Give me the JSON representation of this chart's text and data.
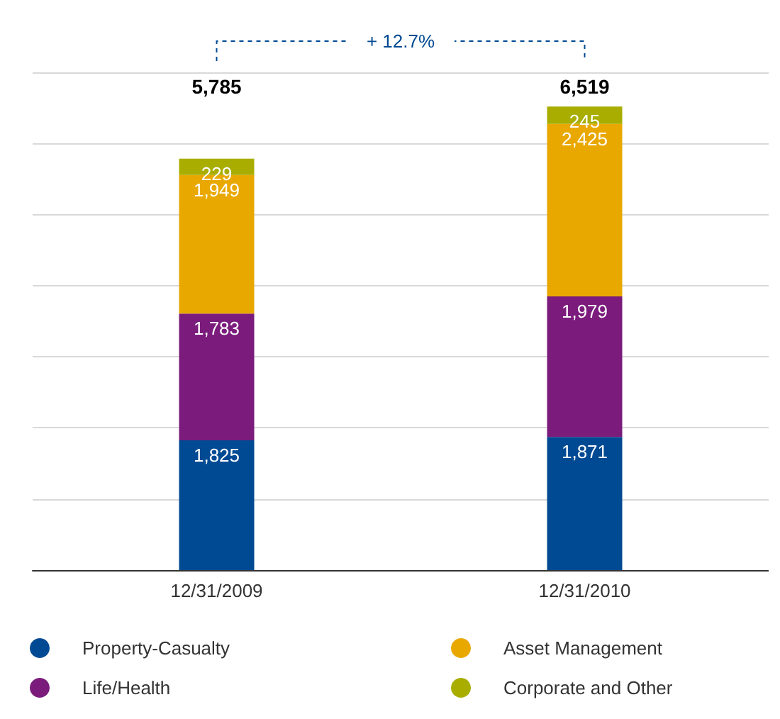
{
  "chart_data": {
    "type": "bar",
    "stacked": true,
    "categories": [
      "12/31/2009",
      "12/31/2010"
    ],
    "series": [
      {
        "name": "Property-Casualty",
        "color": "#004a93",
        "values": [
          1825,
          1871
        ],
        "value_labels": [
          "1,825",
          "1,871"
        ]
      },
      {
        "name": "Life/Health",
        "color": "#7b1c7d",
        "values": [
          1783,
          1979
        ],
        "value_labels": [
          "1,783",
          "1,979"
        ]
      },
      {
        "name": "Asset Management",
        "color": "#e9a800",
        "values": [
          1949,
          2425
        ],
        "value_labels": [
          "1,949",
          "2,425"
        ]
      },
      {
        "name": "Corporate and Other",
        "color": "#a8ad00",
        "values": [
          229,
          245
        ],
        "value_labels": [
          "229",
          "245"
        ]
      }
    ],
    "ylim": [
      0,
      7000
    ],
    "yticks": [
      {
        "value": 0,
        "label": null
      },
      {
        "value": 1000,
        "label": null
      },
      {
        "value": 2000,
        "label": null
      },
      {
        "value": 3000,
        "label": null
      },
      {
        "value": 4000,
        "label": null
      },
      {
        "value": 5000,
        "label": null
      },
      {
        "value": 6000,
        "label": null
      },
      {
        "value": 7000,
        "label": null
      }
    ],
    "tick_labels": "x",
    "grid": "y",
    "legend": "bottom",
    "totals": [
      "5,785",
      "6,519"
    ],
    "annotations": [
      "+ 12.7%"
    ]
  }
}
